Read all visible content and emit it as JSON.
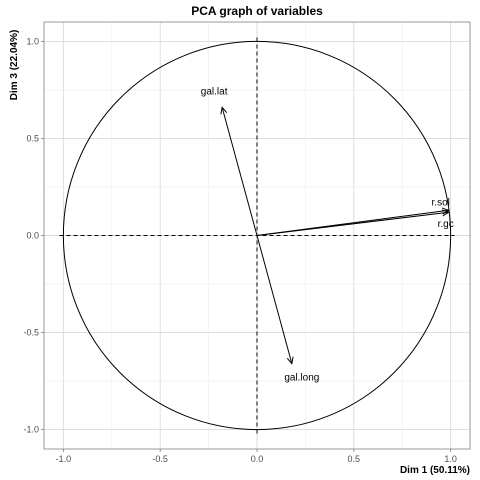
{
  "chart_data": {
    "type": "scatter",
    "subtype": "pca-correlation-circle",
    "title": "PCA graph of variables",
    "xlabel": "Dim 1 (50.11%)",
    "ylabel": "Dim 3 (22.04%)",
    "xlim": [
      -1.1,
      1.1
    ],
    "ylim": [
      -1.1,
      1.1
    ],
    "xticks": [
      -1.0,
      -0.5,
      0.0,
      0.5,
      1.0
    ],
    "yticks": [
      -1.0,
      -0.5,
      0.0,
      0.5,
      1.0
    ],
    "xtick_labels": [
      "-1.0",
      "-0.5",
      "0.0",
      "0.5",
      "1.0"
    ],
    "ytick_labels": [
      "-1.0",
      "-0.5",
      "0.0",
      "0.5",
      "1.0"
    ],
    "grid": true,
    "unit_circle": true,
    "variables": [
      {
        "name": "gal.lat",
        "x": -0.18,
        "y": 0.66
      },
      {
        "name": "gal.long",
        "x": 0.18,
        "y": -0.66
      },
      {
        "name": "r.sol",
        "x": 0.99,
        "y": 0.13
      },
      {
        "name": "r.gc",
        "x": 0.99,
        "y": 0.12
      }
    ]
  }
}
